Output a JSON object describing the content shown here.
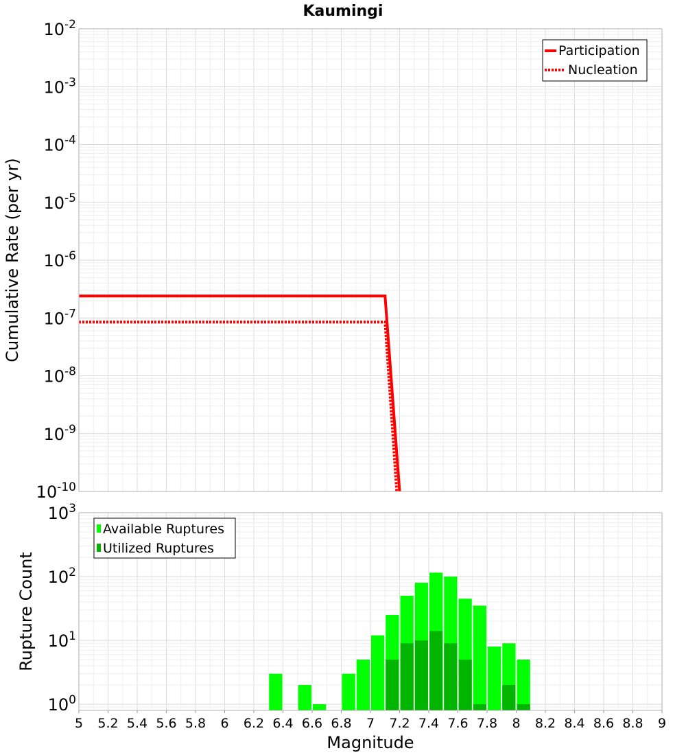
{
  "title": "Kaumingi",
  "chart_data": [
    {
      "type": "line",
      "ylabel": "Cumulative Rate (per yr)",
      "xlabel": "",
      "xlim": [
        5,
        9
      ],
      "ylim": [
        1e-10,
        0.01
      ],
      "y_scale": "log",
      "y_ticks": [
        {
          "base": "10",
          "exp": "-2"
        },
        {
          "base": "10",
          "exp": "-3"
        },
        {
          "base": "10",
          "exp": "-4"
        },
        {
          "base": "10",
          "exp": "-5"
        },
        {
          "base": "10",
          "exp": "-6"
        },
        {
          "base": "10",
          "exp": "-7"
        },
        {
          "base": "10",
          "exp": "-8"
        },
        {
          "base": "10",
          "exp": "-9"
        },
        {
          "base": "10",
          "exp": "-10"
        }
      ],
      "grid": true,
      "legend_position": "top-right",
      "series": [
        {
          "name": "Participation",
          "color": "#ff0000",
          "style": "solid",
          "x": [
            5.0,
            7.1,
            7.2
          ],
          "y": [
            2.4e-07,
            2.4e-07,
            1e-10
          ]
        },
        {
          "name": "Nucleation",
          "color": "#ff0000",
          "style": "dotted",
          "x": [
            5.0,
            7.1,
            7.18
          ],
          "y": [
            8.5e-08,
            8.5e-08,
            1e-10
          ]
        }
      ]
    },
    {
      "type": "bar",
      "ylabel": "Rupture Count",
      "xlabel": "Magnitude",
      "xlim": [
        5,
        9
      ],
      "ylim": [
        0.8,
        1000
      ],
      "y_scale": "log",
      "y_ticks": [
        {
          "base": "10",
          "exp": "3"
        },
        {
          "base": "10",
          "exp": "2"
        },
        {
          "base": "10",
          "exp": "1"
        },
        {
          "base": "10",
          "exp": "0"
        }
      ],
      "x_ticks": [
        "5",
        "5.2",
        "5.4",
        "5.6",
        "5.8",
        "6",
        "6.2",
        "6.4",
        "6.6",
        "6.8",
        "7",
        "7.2",
        "7.4",
        "7.6",
        "7.8",
        "8",
        "8.2",
        "8.4",
        "8.6",
        "8.8",
        "9"
      ],
      "grid": true,
      "legend_position": "top-left",
      "bin_width": 0.1,
      "series": [
        {
          "name": "Available Ruptures",
          "color": "#00ff00",
          "x": [
            6.35,
            6.55,
            6.65,
            6.85,
            6.95,
            7.05,
            7.15,
            7.25,
            7.35,
            7.45,
            7.55,
            7.65,
            7.75,
            7.85,
            7.95,
            8.05
          ],
          "values": [
            3,
            2,
            1,
            3,
            5,
            12,
            25,
            50,
            80,
            115,
            100,
            45,
            35,
            8,
            9,
            5
          ]
        },
        {
          "name": "Utilized Ruptures",
          "color": "#00b400",
          "x": [
            7.15,
            7.25,
            7.35,
            7.45,
            7.55,
            7.65,
            7.75,
            7.95,
            8.05
          ],
          "values": [
            5,
            9,
            10,
            14,
            9,
            5,
            1,
            2,
            1
          ]
        }
      ]
    }
  ]
}
